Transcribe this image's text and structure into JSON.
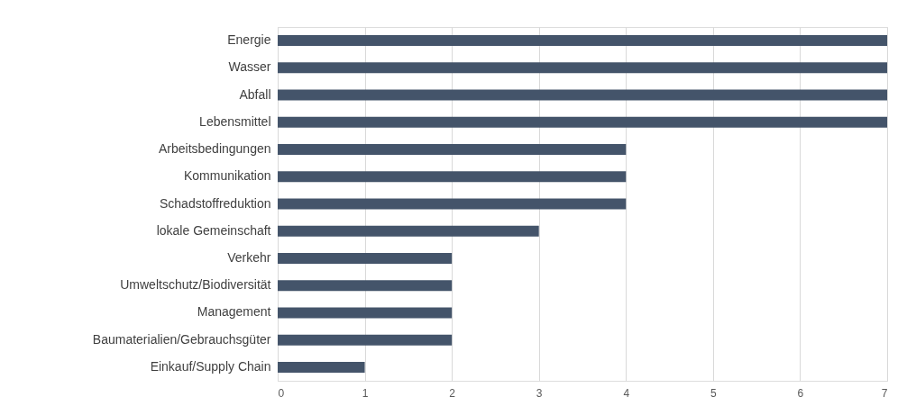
{
  "chart_data": {
    "type": "bar",
    "orientation": "horizontal",
    "categories": [
      "Energie",
      "Wasser",
      "Abfall",
      "Lebensmittel",
      "Arbeitsbedingungen",
      "Kommunikation",
      "Schadstoffreduktion",
      "lokale Gemeinschaft",
      "Verkehr",
      "Umweltschutz/Biodiversität",
      "Management",
      "Baumaterialien/Gebrauchsgüter",
      "Einkauf/Supply Chain"
    ],
    "values": [
      7,
      7,
      7,
      7,
      4,
      4,
      4,
      3,
      2,
      2,
      2,
      2,
      1
    ],
    "color": "#44546a",
    "xlim": [
      0,
      7
    ],
    "xticks": [
      0,
      1,
      2,
      3,
      4,
      5,
      6,
      7
    ],
    "grid": "x"
  }
}
